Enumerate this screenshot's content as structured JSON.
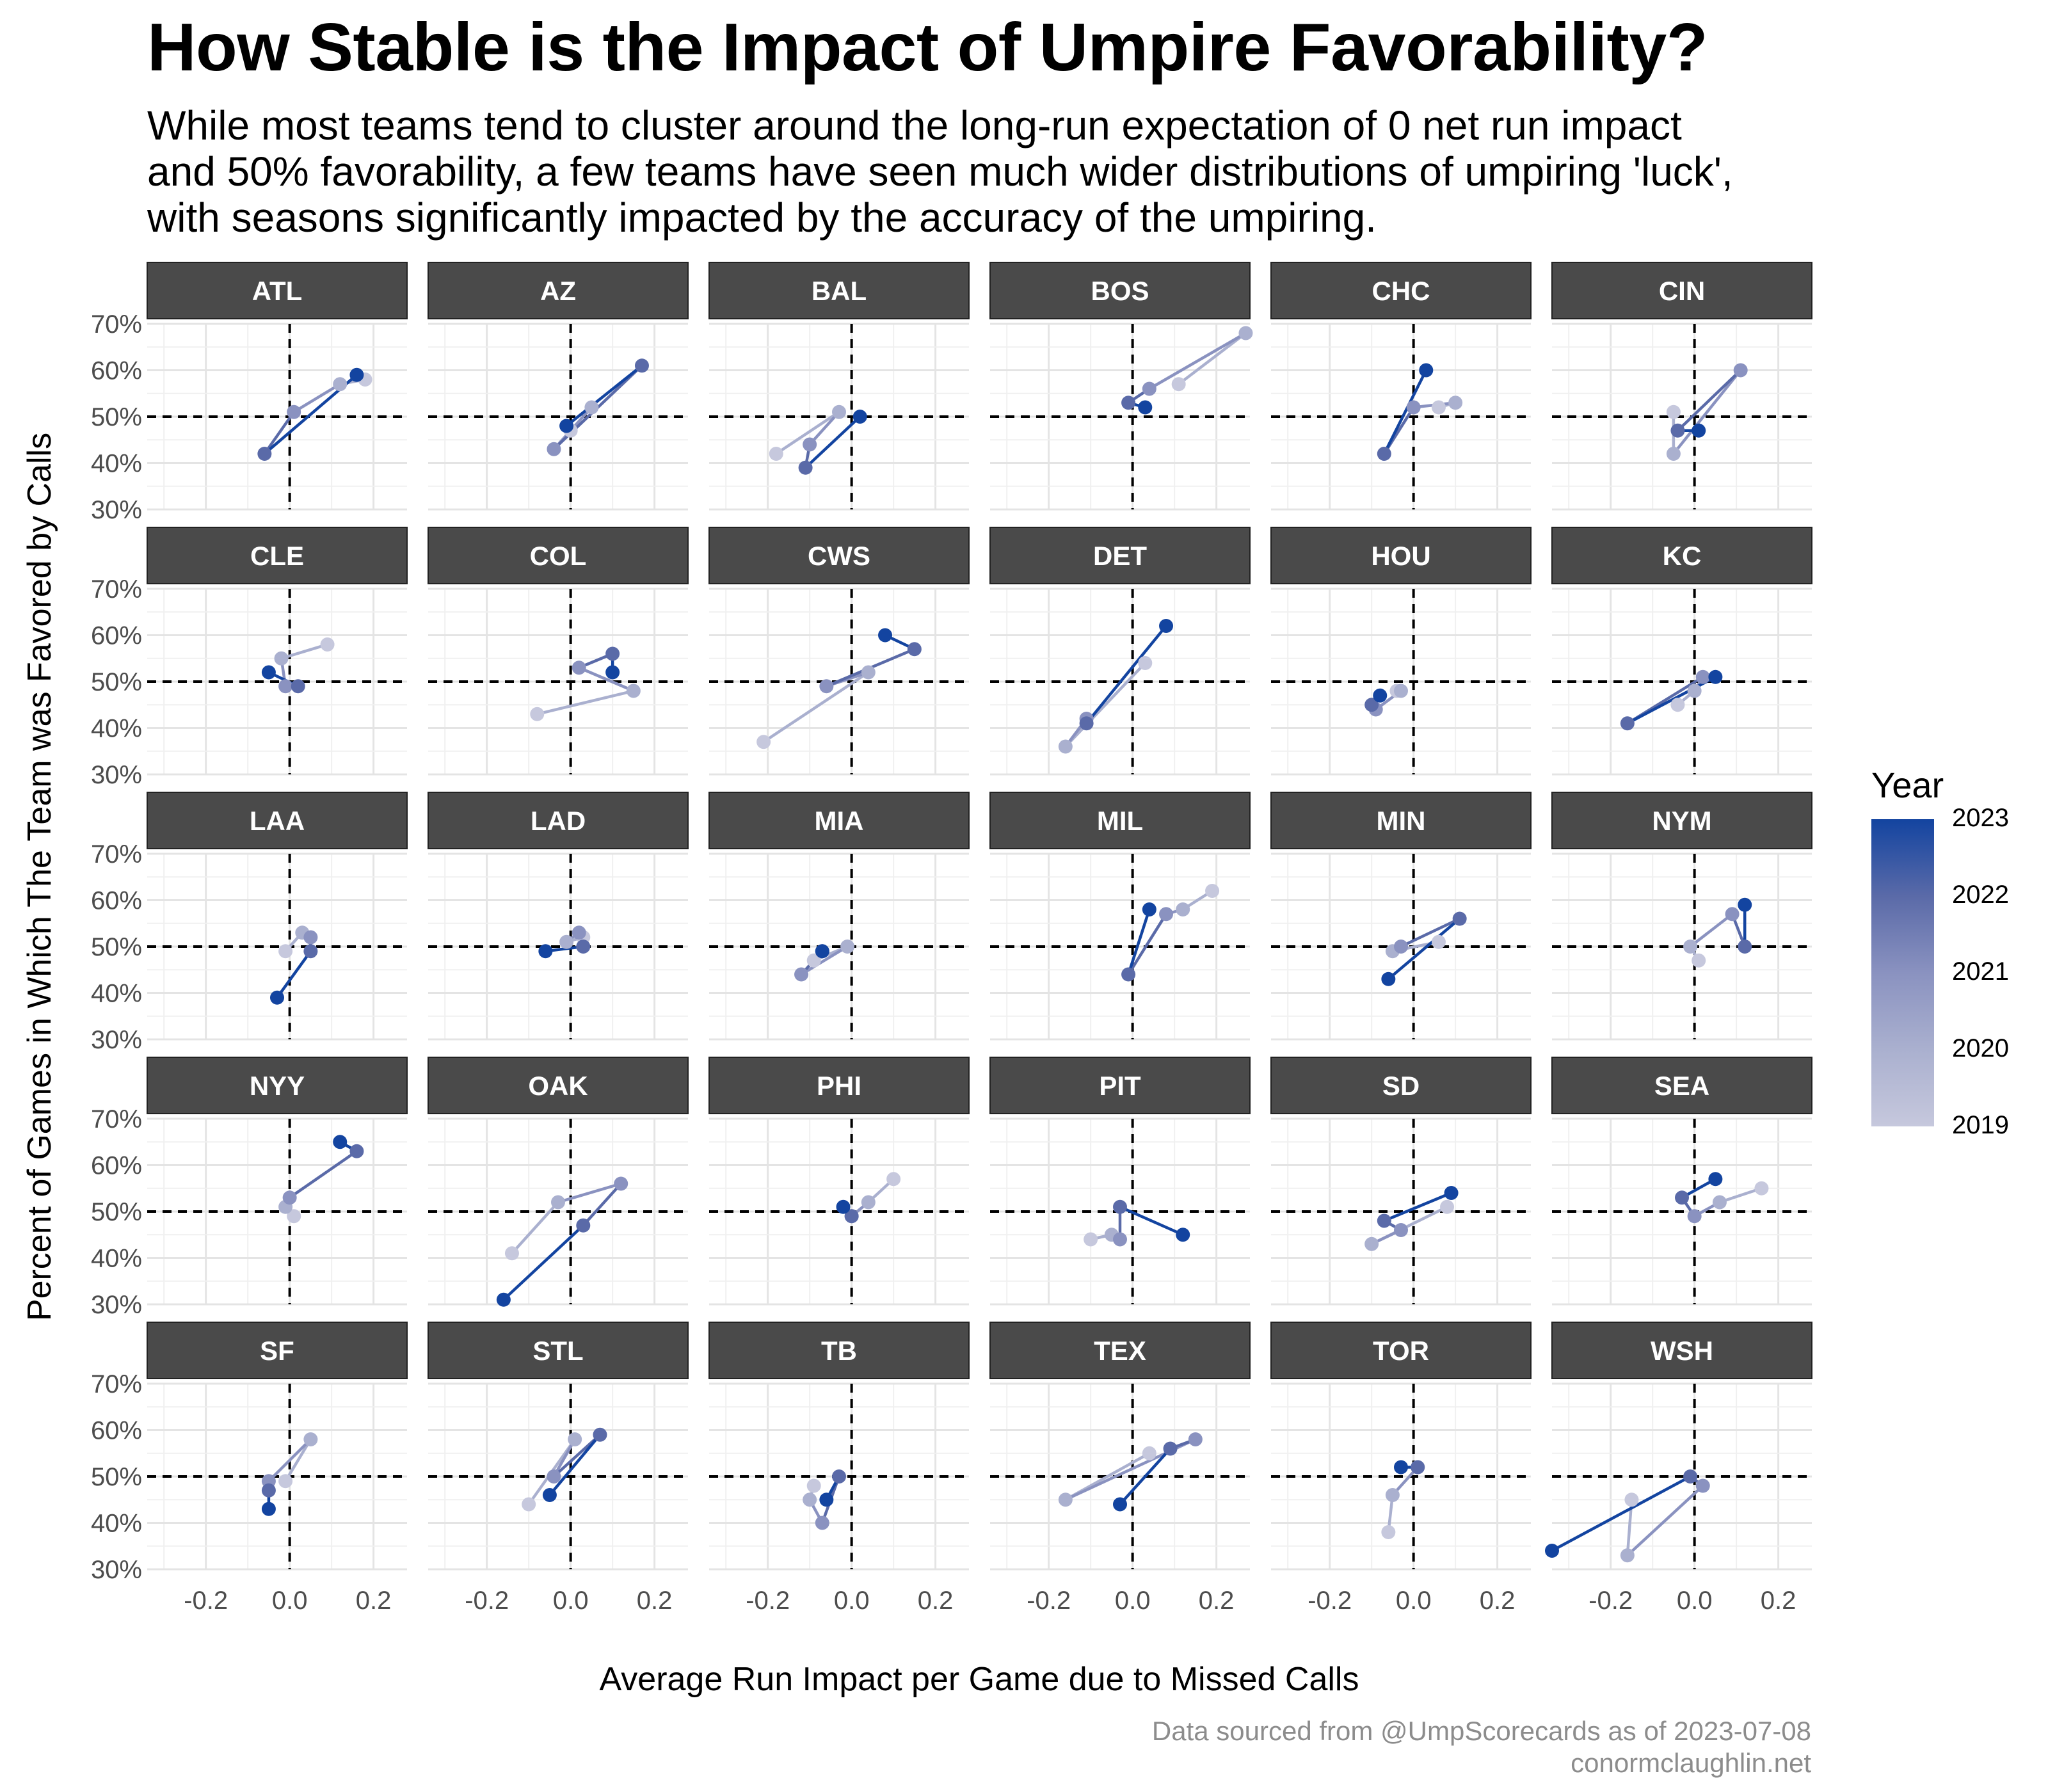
{
  "title": "How Stable is the Impact of Umpire Favorability?",
  "subtitle_lines": [
    "While most teams tend to cluster around the long-run expectation of 0 net run impact",
    "and 50% favorability, a few teams have seen much wider distributions of umpiring 'luck',",
    "with seasons significantly impacted by the accuracy of the umpiring."
  ],
  "caption_lines": [
    "Data sourced from @UmpScorecards as of 2023-07-08",
    "conormclaughlin.net"
  ],
  "chart_data": {
    "type": "scatter",
    "xlabel": "Average Run Impact per Game due to Missed Calls",
    "ylabel": "Percent of Games in Which The Team was Favored by Calls",
    "xlim": [
      -0.34,
      0.28
    ],
    "ylim": [
      30,
      70
    ],
    "x_ticks": [
      -0.2,
      0.0,
      0.2
    ],
    "x_tick_labels": [
      "-0.2",
      "0.0",
      "0.2"
    ],
    "y_ticks": [
      30,
      40,
      50,
      60,
      70
    ],
    "y_tick_labels": [
      "30%",
      "40%",
      "50%",
      "60%",
      "70%"
    ],
    "reference_lines": {
      "x": 0,
      "y": 50
    },
    "grid": true,
    "color_scale": {
      "title": "Year",
      "low": "#c6c8dd",
      "high": "#1344a0",
      "labels": [
        "2023",
        "2022",
        "2021",
        "2020",
        "2019"
      ]
    },
    "facets": [
      {
        "team": "ATL",
        "points": [
          [
            0.18,
            58
          ],
          [
            0.12,
            57
          ],
          [
            0.01,
            51
          ],
          [
            -0.06,
            42
          ],
          [
            0.16,
            59
          ]
        ]
      },
      {
        "team": "AZ",
        "points": [
          [
            0.0,
            47
          ],
          [
            0.05,
            52
          ],
          [
            -0.04,
            43
          ],
          [
            0.17,
            61
          ],
          [
            -0.01,
            48
          ]
        ]
      },
      {
        "team": "BAL",
        "points": [
          [
            -0.18,
            42
          ],
          [
            -0.03,
            51
          ],
          [
            -0.1,
            44
          ],
          [
            -0.11,
            39
          ],
          [
            0.02,
            50
          ]
        ]
      },
      {
        "team": "BOS",
        "points": [
          [
            0.11,
            57
          ],
          [
            0.27,
            68
          ],
          [
            0.04,
            56
          ],
          [
            -0.01,
            53
          ],
          [
            0.03,
            52
          ]
        ]
      },
      {
        "team": "CHC",
        "points": [
          [
            0.06,
            52
          ],
          [
            0.1,
            53
          ],
          [
            0.0,
            52
          ],
          [
            -0.07,
            42
          ],
          [
            0.03,
            60
          ]
        ]
      },
      {
        "team": "CIN",
        "points": [
          [
            -0.05,
            51
          ],
          [
            -0.05,
            42
          ],
          [
            0.11,
            60
          ],
          [
            -0.04,
            47
          ],
          [
            0.01,
            47
          ]
        ]
      },
      {
        "team": "CLE",
        "points": [
          [
            0.09,
            58
          ],
          [
            -0.02,
            55
          ],
          [
            -0.01,
            49
          ],
          [
            0.02,
            49
          ],
          [
            -0.05,
            52
          ]
        ]
      },
      {
        "team": "COL",
        "points": [
          [
            -0.08,
            43
          ],
          [
            0.15,
            48
          ],
          [
            0.02,
            53
          ],
          [
            0.1,
            56
          ],
          [
            0.1,
            52
          ]
        ]
      },
      {
        "team": "CWS",
        "points": [
          [
            -0.21,
            37
          ],
          [
            0.04,
            52
          ],
          [
            -0.06,
            49
          ],
          [
            0.15,
            57
          ],
          [
            0.08,
            60
          ]
        ]
      },
      {
        "team": "DET",
        "points": [
          [
            0.03,
            54
          ],
          [
            -0.16,
            36
          ],
          [
            -0.11,
            42
          ],
          [
            -0.11,
            41
          ],
          [
            0.08,
            62
          ]
        ]
      },
      {
        "team": "HOU",
        "points": [
          [
            -0.04,
            48
          ],
          [
            -0.03,
            48
          ],
          [
            -0.09,
            44
          ],
          [
            -0.1,
            45
          ],
          [
            -0.08,
            47
          ]
        ]
      },
      {
        "team": "KC",
        "points": [
          [
            -0.04,
            45
          ],
          [
            0.0,
            48
          ],
          [
            0.02,
            51
          ],
          [
            -0.16,
            41
          ],
          [
            0.05,
            51
          ]
        ]
      },
      {
        "team": "LAA",
        "points": [
          [
            -0.01,
            49
          ],
          [
            0.03,
            53
          ],
          [
            0.05,
            52
          ],
          [
            0.05,
            49
          ],
          [
            -0.03,
            39
          ]
        ]
      },
      {
        "team": "LAD",
        "points": [
          [
            0.03,
            52
          ],
          [
            -0.01,
            51
          ],
          [
            0.02,
            53
          ],
          [
            0.03,
            50
          ],
          [
            -0.06,
            49
          ]
        ]
      },
      {
        "team": "MIA",
        "points": [
          [
            -0.09,
            47
          ],
          [
            -0.01,
            50
          ],
          [
            -0.12,
            44
          ],
          [
            -0.07,
            49
          ],
          [
            -0.07,
            49
          ]
        ]
      },
      {
        "team": "MIL",
        "points": [
          [
            0.19,
            62
          ],
          [
            0.12,
            58
          ],
          [
            0.08,
            57
          ],
          [
            -0.01,
            44
          ],
          [
            0.04,
            58
          ]
        ]
      },
      {
        "team": "MIN",
        "points": [
          [
            0.06,
            51
          ],
          [
            -0.05,
            49
          ],
          [
            -0.03,
            50
          ],
          [
            0.11,
            56
          ],
          [
            -0.06,
            43
          ]
        ]
      },
      {
        "team": "NYM",
        "points": [
          [
            0.01,
            47
          ],
          [
            -0.01,
            50
          ],
          [
            0.09,
            57
          ],
          [
            0.12,
            50
          ],
          [
            0.12,
            59
          ]
        ]
      },
      {
        "team": "NYY",
        "points": [
          [
            0.01,
            49
          ],
          [
            -0.01,
            51
          ],
          [
            0.0,
            53
          ],
          [
            0.16,
            63
          ],
          [
            0.12,
            65
          ]
        ]
      },
      {
        "team": "OAK",
        "points": [
          [
            -0.14,
            41
          ],
          [
            -0.03,
            52
          ],
          [
            0.12,
            56
          ],
          [
            0.03,
            47
          ],
          [
            -0.16,
            31
          ]
        ]
      },
      {
        "team": "PHI",
        "points": [
          [
            0.1,
            57
          ],
          [
            0.04,
            52
          ],
          [
            0.0,
            49
          ],
          [
            0.0,
            49
          ],
          [
            -0.02,
            51
          ]
        ]
      },
      {
        "team": "PIT",
        "points": [
          [
            -0.1,
            44
          ],
          [
            -0.05,
            45
          ],
          [
            -0.03,
            44
          ],
          [
            -0.03,
            51
          ],
          [
            0.12,
            45
          ]
        ]
      },
      {
        "team": "SD",
        "points": [
          [
            0.08,
            51
          ],
          [
            -0.1,
            43
          ],
          [
            -0.03,
            46
          ],
          [
            -0.07,
            48
          ],
          [
            0.09,
            54
          ]
        ]
      },
      {
        "team": "SEA",
        "points": [
          [
            0.16,
            55
          ],
          [
            0.06,
            52
          ],
          [
            0.0,
            49
          ],
          [
            -0.03,
            53
          ],
          [
            0.05,
            57
          ]
        ]
      },
      {
        "team": "SF",
        "points": [
          [
            -0.01,
            49
          ],
          [
            0.05,
            58
          ],
          [
            -0.05,
            49
          ],
          [
            -0.05,
            47
          ],
          [
            -0.05,
            43
          ]
        ]
      },
      {
        "team": "STL",
        "points": [
          [
            -0.1,
            44
          ],
          [
            0.01,
            58
          ],
          [
            -0.04,
            50
          ],
          [
            0.07,
            59
          ],
          [
            -0.05,
            46
          ]
        ]
      },
      {
        "team": "TB",
        "points": [
          [
            -0.09,
            48
          ],
          [
            -0.1,
            45
          ],
          [
            -0.07,
            40
          ],
          [
            -0.03,
            50
          ],
          [
            -0.06,
            45
          ]
        ]
      },
      {
        "team": "TEX",
        "points": [
          [
            0.04,
            55
          ],
          [
            -0.16,
            45
          ],
          [
            0.15,
            58
          ],
          [
            0.09,
            56
          ],
          [
            -0.03,
            44
          ]
        ]
      },
      {
        "team": "TOR",
        "points": [
          [
            -0.06,
            38
          ],
          [
            -0.05,
            46
          ],
          [
            0.01,
            52
          ],
          [
            0.01,
            52
          ],
          [
            -0.03,
            52
          ]
        ]
      },
      {
        "team": "WSH",
        "points": [
          [
            -0.15,
            45
          ],
          [
            -0.16,
            33
          ],
          [
            0.02,
            48
          ],
          [
            -0.01,
            50
          ],
          [
            -0.34,
            34
          ]
        ]
      }
    ]
  }
}
